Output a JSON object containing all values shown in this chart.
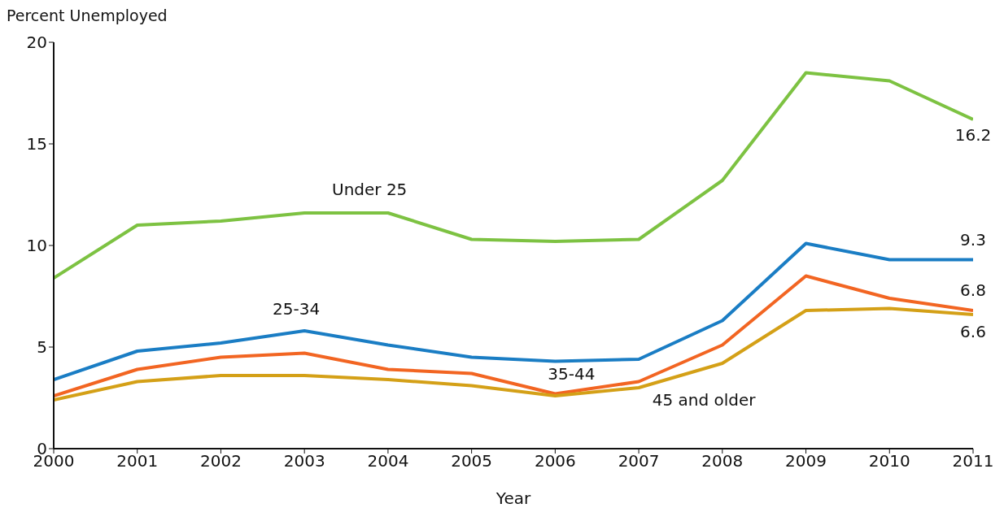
{
  "chart_data": {
    "type": "line",
    "ylabel": "Percent Unemployed",
    "xlabel": "Year",
    "x": [
      2000,
      2001,
      2002,
      2003,
      2004,
      2005,
      2006,
      2007,
      2008,
      2009,
      2010,
      2011
    ],
    "xlim": [
      2000,
      2011
    ],
    "xticks": [
      2000,
      2001,
      2002,
      2003,
      2004,
      2005,
      2006,
      2007,
      2008,
      2009,
      2010,
      2011
    ],
    "ylim": [
      0,
      20
    ],
    "yticks": [
      0,
      5,
      10,
      15,
      20
    ],
    "grid": false,
    "legend": false,
    "marker": "none",
    "line_style": "solid",
    "series": [
      {
        "name": "Under 25",
        "color": "#7dc242",
        "values": [
          8.4,
          11.0,
          11.2,
          11.6,
          11.6,
          10.3,
          10.2,
          10.3,
          13.2,
          18.5,
          18.1,
          16.2
        ],
        "value_labels": [
          null,
          null,
          null,
          null,
          null,
          null,
          null,
          null,
          null,
          null,
          null,
          "16.2"
        ]
      },
      {
        "name": "25-34",
        "color": "#1a7dc4",
        "values": [
          3.4,
          4.8,
          5.2,
          5.8,
          5.1,
          4.5,
          4.3,
          4.4,
          6.3,
          10.1,
          9.3,
          9.3
        ],
        "value_labels": [
          null,
          null,
          null,
          null,
          null,
          null,
          null,
          null,
          null,
          null,
          null,
          "9.3"
        ]
      },
      {
        "name": "35-44",
        "color": "#f26522",
        "values": [
          2.6,
          3.9,
          4.5,
          4.7,
          3.9,
          3.7,
          2.7,
          3.3,
          5.1,
          8.5,
          7.4,
          6.8
        ],
        "value_labels": [
          null,
          null,
          null,
          null,
          null,
          null,
          null,
          null,
          null,
          null,
          null,
          "6.8"
        ]
      },
      {
        "name": "45 and older",
        "color": "#d4a017",
        "values": [
          2.4,
          3.3,
          3.6,
          3.6,
          3.4,
          3.1,
          2.6,
          3.0,
          4.2,
          6.8,
          6.9,
          6.6
        ],
        "value_labels": [
          null,
          null,
          null,
          null,
          null,
          null,
          null,
          null,
          null,
          null,
          null,
          "6.6"
        ]
      }
    ]
  }
}
